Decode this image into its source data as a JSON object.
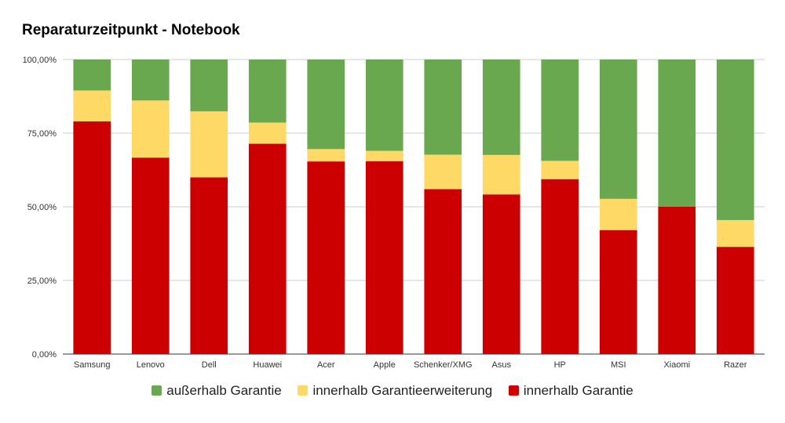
{
  "chart_data": {
    "type": "bar",
    "stacked": true,
    "title": "Reparaturzeitpunkt - Notebook",
    "xlabel": "",
    "ylabel": "",
    "ylim": [
      0,
      100
    ],
    "y_ticks": [
      "0,00%",
      "25,00%",
      "50,00%",
      "75,00%",
      "100,00%"
    ],
    "y_tick_values": [
      0,
      25,
      50,
      75,
      100
    ],
    "grid": true,
    "legend_position": "bottom",
    "categories": [
      "Samsung",
      "Lenovo",
      "Dell",
      "Huawei",
      "Acer",
      "Apple",
      "Schenker/XMG",
      "Asus",
      "HP",
      "MSI",
      "Xiaomi",
      "Razer"
    ],
    "series": [
      {
        "name": "innerhalb Garantie",
        "color": "#cc0000",
        "values": [
          79.0,
          66.7,
          60.0,
          71.4,
          65.4,
          65.5,
          56.0,
          54.2,
          59.4,
          42.1,
          50.0,
          36.4
        ]
      },
      {
        "name": "innerhalb Garantieerweiterung",
        "color": "#ffd966",
        "values": [
          10.5,
          19.4,
          22.4,
          7.2,
          4.2,
          3.5,
          11.7,
          13.4,
          6.2,
          10.6,
          0.0,
          9.1
        ]
      },
      {
        "name": "außerhalb Garantie",
        "color": "#6aa84f",
        "values": [
          10.5,
          13.9,
          17.6,
          21.4,
          30.4,
          31.0,
          32.3,
          32.4,
          34.4,
          47.3,
          50.0,
          54.5
        ]
      }
    ],
    "legend_order": [
      2,
      1,
      0
    ]
  }
}
